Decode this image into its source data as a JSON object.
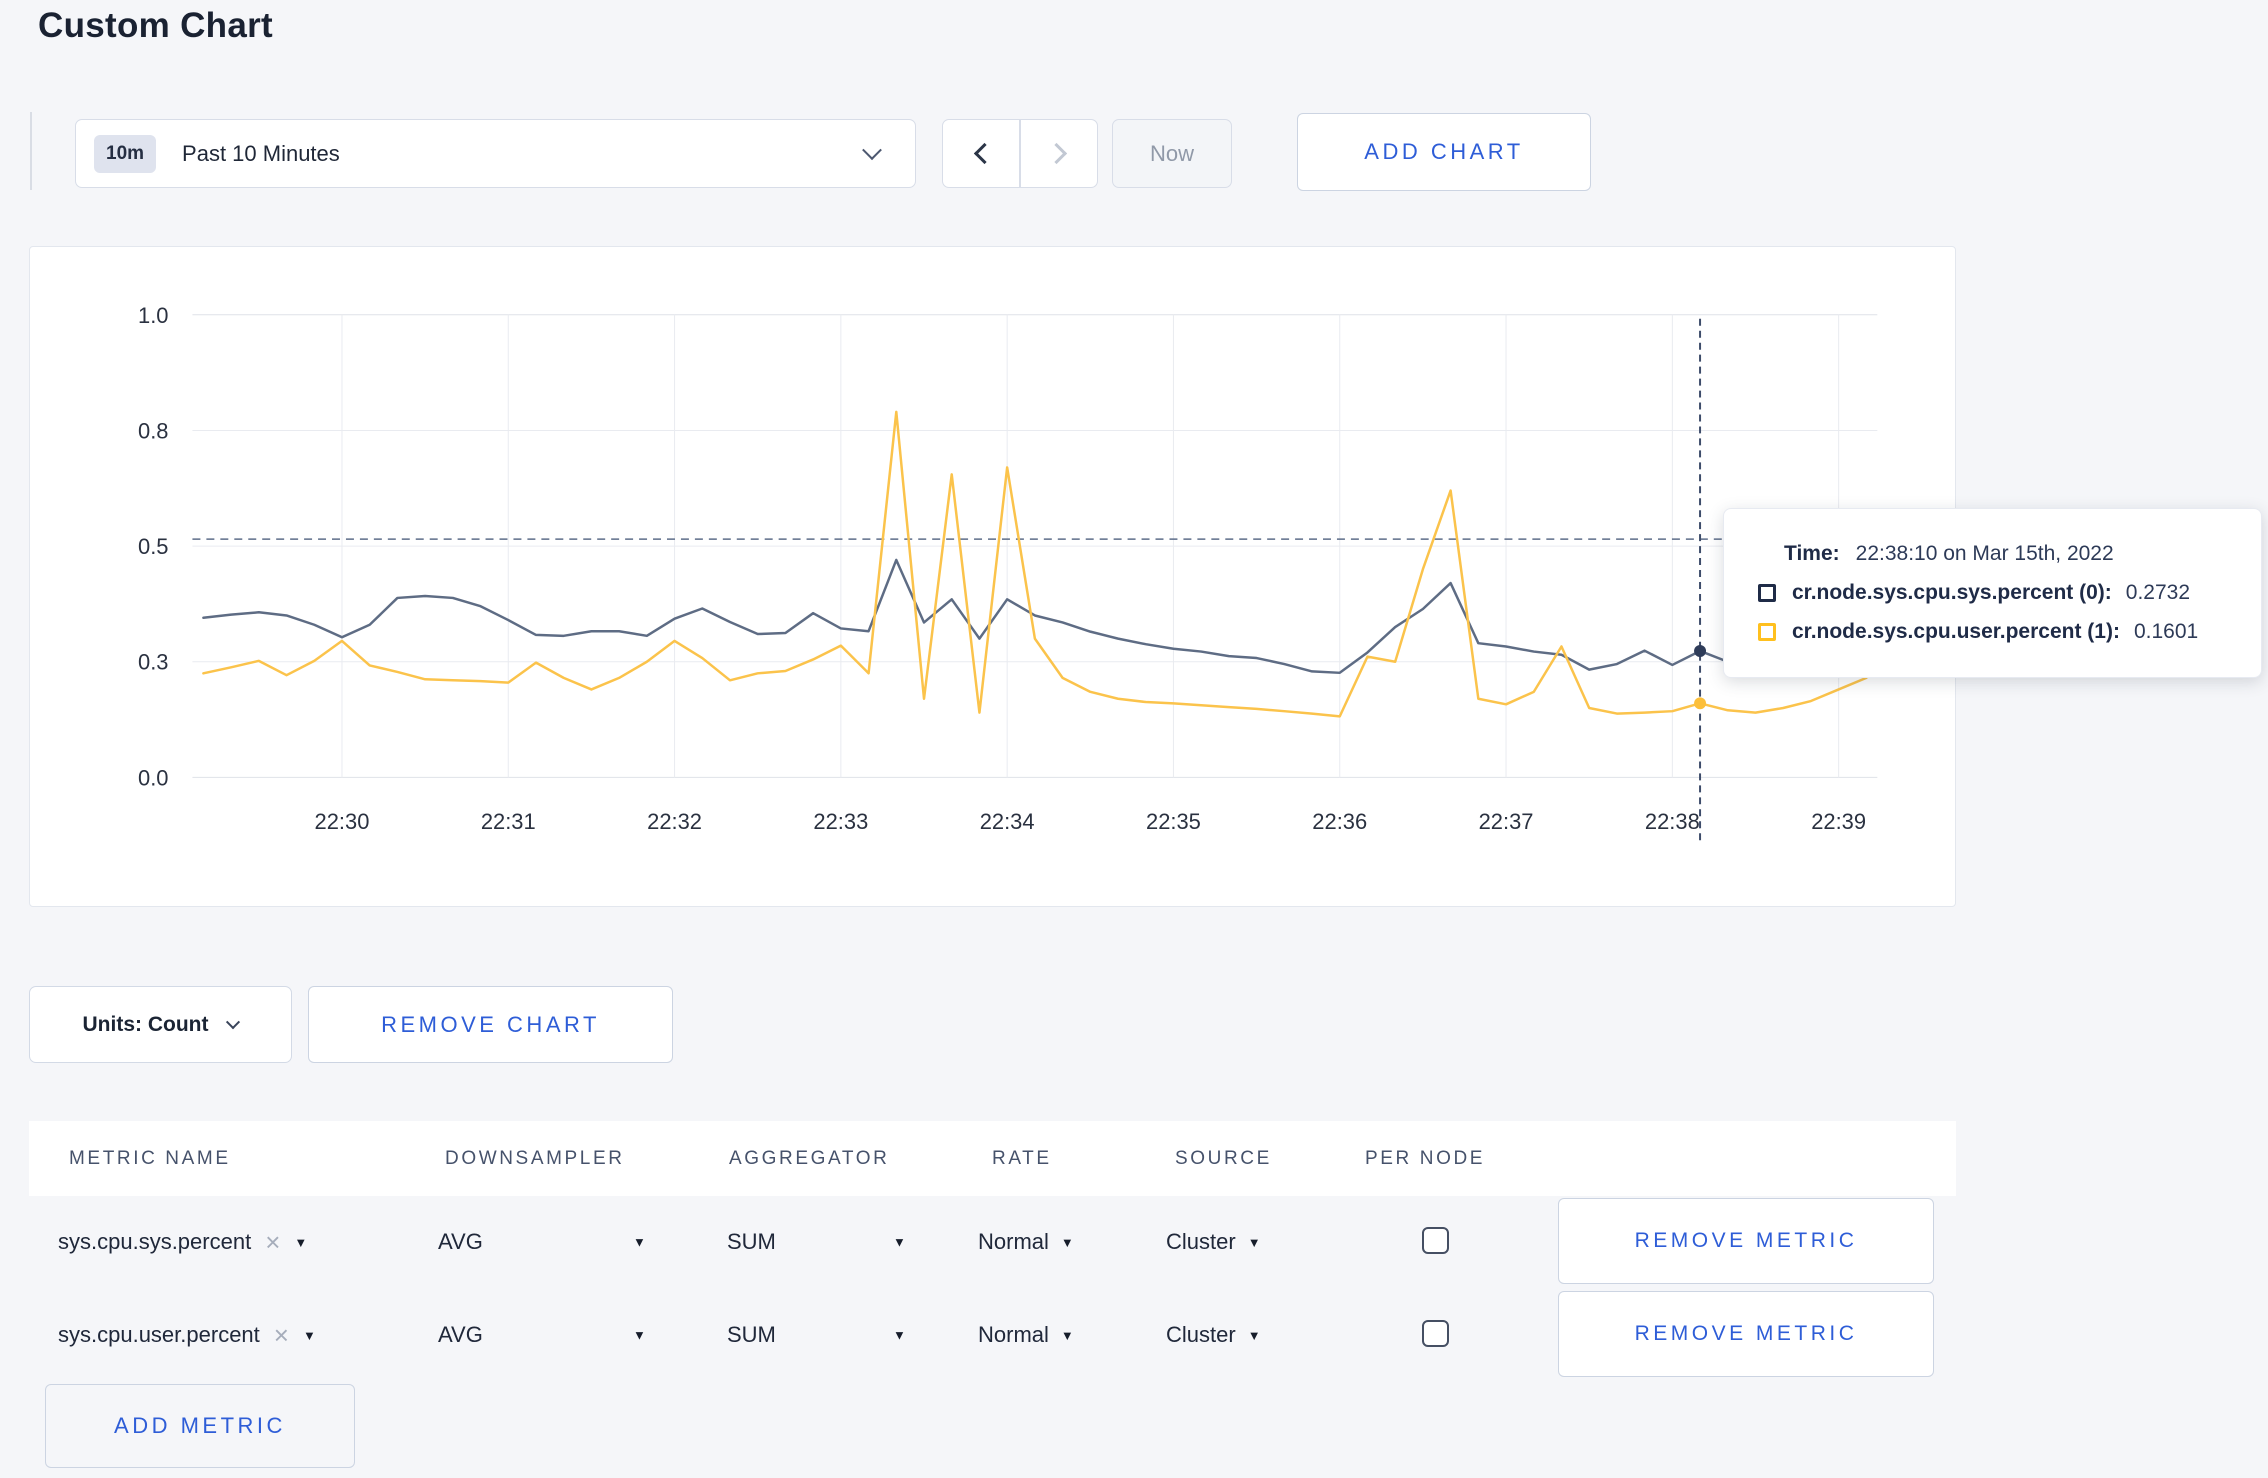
{
  "icons": {
    "caret_down": "▼",
    "close": "×"
  },
  "page": {
    "title": "Custom Chart"
  },
  "toolbar": {
    "range_badge": "10m",
    "range_label": "Past 10 Minutes",
    "now_label": "Now",
    "add_chart_label": "ADD CHART"
  },
  "chart_data": {
    "type": "line",
    "title": "",
    "x_start_time": "22:29:10",
    "x_interval_seconds": 10,
    "ylim": [
      0,
      1
    ],
    "grid": true,
    "x_ticks": [
      {
        "label": "22:30",
        "index": 5
      },
      {
        "label": "22:31",
        "index": 11
      },
      {
        "label": "22:32",
        "index": 17
      },
      {
        "label": "22:33",
        "index": 23
      },
      {
        "label": "22:34",
        "index": 29
      },
      {
        "label": "22:35",
        "index": 35
      },
      {
        "label": "22:36",
        "index": 41
      },
      {
        "label": "22:37",
        "index": 47
      },
      {
        "label": "22:38",
        "index": 53
      },
      {
        "label": "22:39",
        "index": 59
      }
    ],
    "y_ticks": [
      {
        "label": "0.0",
        "value": 0.0
      },
      {
        "label": "0.3",
        "value": 0.25
      },
      {
        "label": "0.5",
        "value": 0.5
      },
      {
        "label": "0.8",
        "value": 0.75
      },
      {
        "label": "1.0",
        "value": 1.0
      }
    ],
    "series": [
      {
        "name": "cr.node.sys.cpu.sys.percent",
        "color": "#5e6c84",
        "dot_color": "#2e3c59",
        "values": [
          0.345,
          0.352,
          0.357,
          0.35,
          0.33,
          0.303,
          0.33,
          0.388,
          0.392,
          0.388,
          0.37,
          0.34,
          0.308,
          0.306,
          0.316,
          0.316,
          0.306,
          0.343,
          0.365,
          0.336,
          0.31,
          0.312,
          0.355,
          0.322,
          0.316,
          0.47,
          0.335,
          0.385,
          0.3,
          0.385,
          0.35,
          0.335,
          0.315,
          0.3,
          0.288,
          0.278,
          0.272,
          0.262,
          0.258,
          0.245,
          0.229,
          0.226,
          0.27,
          0.325,
          0.364,
          0.42,
          0.29,
          0.283,
          0.272,
          0.265,
          0.233,
          0.245,
          0.274,
          0.243,
          0.2732,
          0.25,
          0.26,
          0.255,
          0.26,
          0.255,
          0.26
        ]
      },
      {
        "name": "cr.node.sys.cpu.user.percent",
        "color": "#fbc34b",
        "dot_color": "#fcbf3a",
        "values": [
          0.225,
          0.238,
          0.252,
          0.221,
          0.252,
          0.295,
          0.242,
          0.228,
          0.212,
          0.21,
          0.208,
          0.205,
          0.248,
          0.215,
          0.19,
          0.215,
          0.25,
          0.295,
          0.258,
          0.21,
          0.225,
          0.23,
          0.255,
          0.285,
          0.225,
          0.79,
          0.17,
          0.655,
          0.14,
          0.67,
          0.3,
          0.215,
          0.185,
          0.17,
          0.163,
          0.16,
          0.156,
          0.152,
          0.148,
          0.143,
          0.138,
          0.132,
          0.261,
          0.25,
          0.45,
          0.62,
          0.17,
          0.158,
          0.185,
          0.283,
          0.15,
          0.138,
          0.14,
          0.143,
          0.1601,
          0.145,
          0.14,
          0.15,
          0.165,
          0.19,
          0.215
        ]
      }
    ],
    "crosshair": {
      "index": 54,
      "time": "22:38:10",
      "guideline_value": 0.515
    }
  },
  "tooltip": {
    "time_label": "Time:",
    "time_value": "22:38:10 on Mar 15th, 2022",
    "series": [
      {
        "name": "cr.node.sys.cpu.sys.percent (0):",
        "value": "0.2732",
        "swatch_color": "#1f2b47"
      },
      {
        "name": "cr.node.sys.cpu.user.percent (1):",
        "value": "0.1601",
        "swatch_color": "#ffc01e"
      }
    ]
  },
  "chart_controls": {
    "units_label": "Units: Count",
    "remove_chart_label": "REMOVE CHART"
  },
  "metrics_table": {
    "headers": [
      "METRIC NAME",
      "DOWNSAMPLER",
      "AGGREGATOR",
      "RATE",
      "SOURCE",
      "PER NODE"
    ],
    "rows": [
      {
        "metric": "sys.cpu.sys.percent",
        "downsampler": "AVG",
        "aggregator": "SUM",
        "rate": "Normal",
        "source": "Cluster",
        "per_node_checked": false,
        "remove_label": "REMOVE METRIC"
      },
      {
        "metric": "sys.cpu.user.percent",
        "downsampler": "AVG",
        "aggregator": "SUM",
        "rate": "Normal",
        "source": "Cluster",
        "per_node_checked": false,
        "remove_label": "REMOVE METRIC"
      }
    ],
    "add_metric_label": "ADD METRIC"
  }
}
